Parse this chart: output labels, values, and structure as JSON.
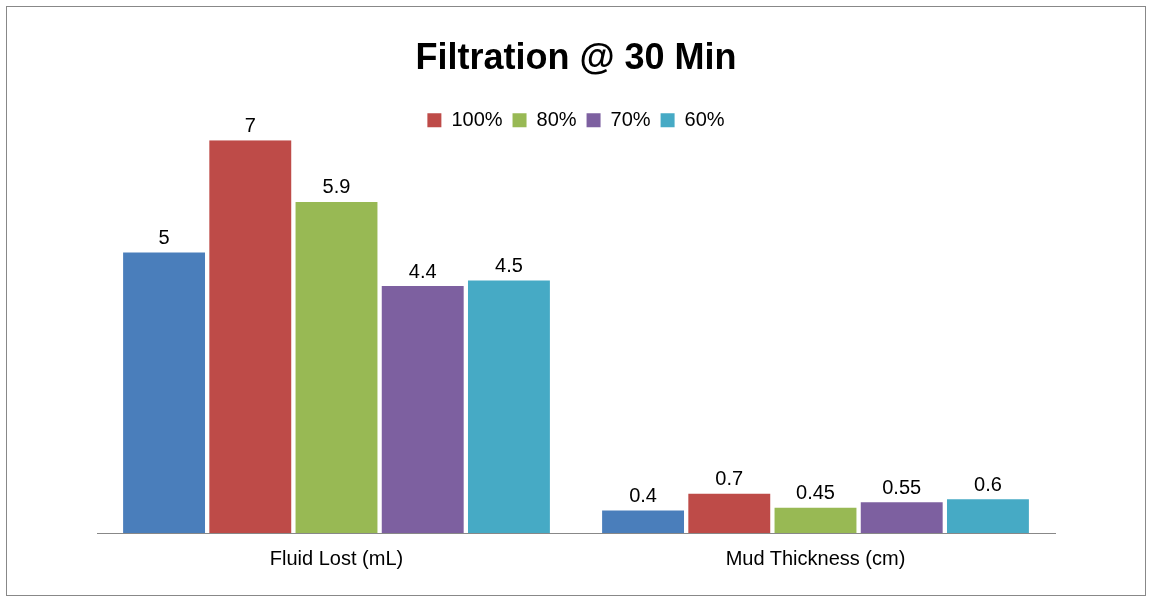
{
  "chart_data": {
    "type": "bar",
    "title": "Filtration @ 30 Min",
    "categories": [
      "Fluid Lost (mL)",
      "Mud Thickness (cm)"
    ],
    "series": [
      {
        "color": "#4a7ebb",
        "values": [
          5,
          0.4
        ]
      },
      {
        "name": "100%",
        "color": "#be4b48",
        "values": [
          7,
          0.7
        ]
      },
      {
        "name": "80%",
        "color": "#98b954",
        "values": [
          5.9,
          0.45
        ]
      },
      {
        "name": "70%",
        "color": "#7d60a0",
        "values": [
          4.4,
          0.55
        ]
      },
      {
        "name": "60%",
        "color": "#46aac5",
        "values": [
          4.5,
          0.6
        ]
      }
    ],
    "data_labels": true,
    "legend": "top",
    "grid": false,
    "tick_labels": "x"
  }
}
